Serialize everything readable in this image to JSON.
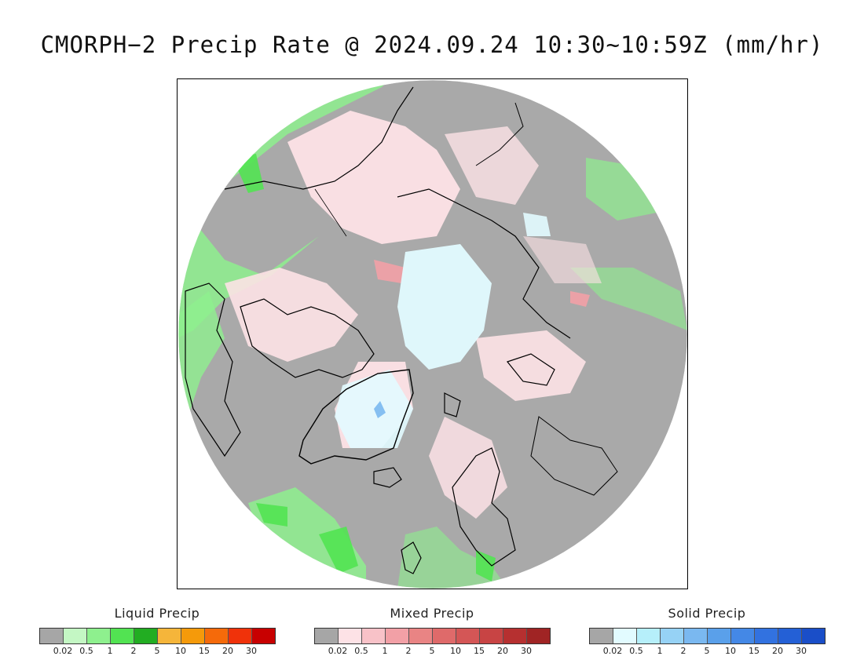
{
  "title": "CMORPH−2 Precip Rate @ 2024.09.24 10:30~10:59Z (mm/hr)",
  "map": {
    "projection": "north polar stereographic",
    "background_color": "#a9a9a9",
    "coastline_color": "#000000"
  },
  "legends": [
    {
      "title": "Liquid Precip",
      "colors": [
        "#a6a6a6",
        "#c4f7c4",
        "#8ef08e",
        "#52e352",
        "#22ad22",
        "#f5b53a",
        "#f59a0a",
        "#f56a0a",
        "#f0320a",
        "#c80000"
      ],
      "ticks": [
        "0.02",
        "0.5",
        "1",
        "2",
        "5",
        "10",
        "15",
        "20",
        "30"
      ]
    },
    {
      "title": "Mixed Precip",
      "colors": [
        "#a6a6a6",
        "#fde2e6",
        "#f8c2c8",
        "#f2a0a6",
        "#e98484",
        "#df6a6a",
        "#d45656",
        "#c84444",
        "#b63030",
        "#a02424"
      ],
      "ticks": [
        "0.02",
        "0.5",
        "1",
        "2",
        "5",
        "10",
        "15",
        "20",
        "30"
      ]
    },
    {
      "title": "Solid Precip",
      "colors": [
        "#a6a6a6",
        "#e2fbff",
        "#b6effa",
        "#96d2f5",
        "#7ab8f0",
        "#5aa0ea",
        "#4488e6",
        "#3272e0",
        "#2460d6",
        "#1a4ec8"
      ],
      "ticks": [
        "0.02",
        "0.5",
        "1",
        "2",
        "5",
        "10",
        "15",
        "20",
        "30"
      ]
    }
  ]
}
